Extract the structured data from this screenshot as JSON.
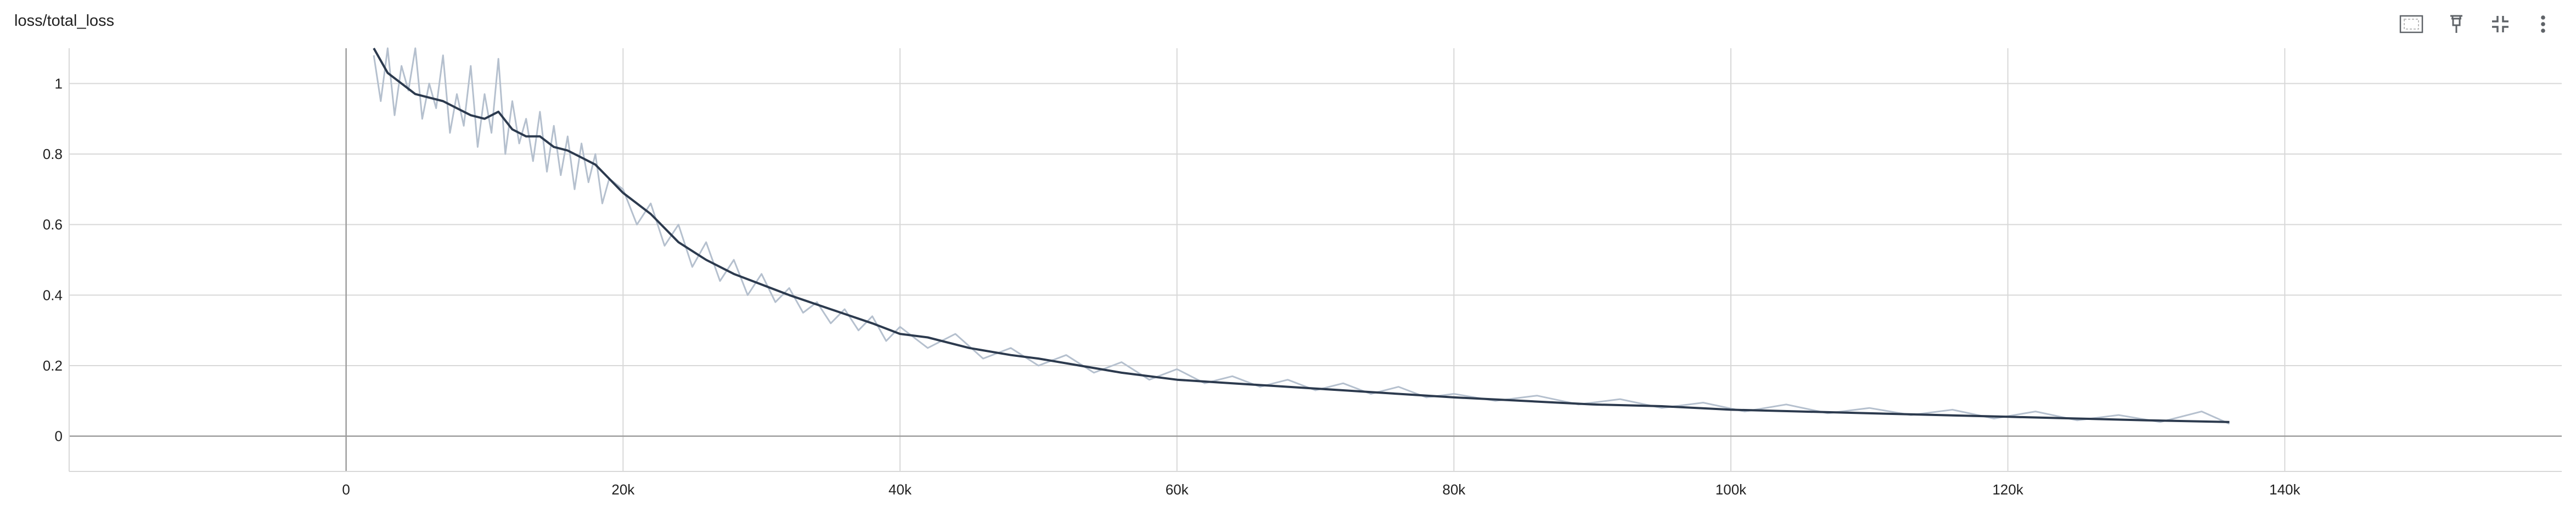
{
  "card": {
    "title": "loss/total_loss",
    "toolbar": {
      "fit_icon": "fit-domain-icon",
      "pin_icon": "pin-icon",
      "collapse_icon": "collapse-icon",
      "menu_icon": "more-vert-icon"
    }
  },
  "colors": {
    "smoothed_line": "#2c3a4e",
    "raw_line": "#b5c0ce",
    "grid": "#d8d8d8",
    "axis": "#9e9e9e"
  },
  "chart_data": {
    "type": "line",
    "title": "loss/total_loss",
    "xlabel": "",
    "ylabel": "",
    "xlim": [
      -20000,
      160000
    ],
    "ylim": [
      -0.1,
      1.1
    ],
    "x_ticks": [
      0,
      20000,
      40000,
      60000,
      80000,
      100000,
      120000,
      140000
    ],
    "x_tick_labels": [
      "0",
      "20k",
      "40k",
      "60k",
      "80k",
      "100k",
      "120k",
      "140k"
    ],
    "y_ticks": [
      0,
      0.2,
      0.4,
      0.6,
      0.8,
      1
    ],
    "y_tick_labels": [
      "0",
      "0.2",
      "0.4",
      "0.6",
      "0.8",
      "1"
    ],
    "grid": true,
    "legend": "none",
    "series": [
      {
        "role": "smoothed",
        "x": [
          2000,
          3000,
          4000,
          5000,
          6000,
          7000,
          8000,
          9000,
          10000,
          11000,
          12000,
          13000,
          14000,
          15000,
          16000,
          17000,
          18000,
          19000,
          20000,
          22000,
          24000,
          26000,
          28000,
          30000,
          32000,
          35000,
          38000,
          40000,
          42000,
          45000,
          48000,
          50000,
          53000,
          56000,
          60000,
          64000,
          68000,
          72000,
          76000,
          80000,
          85000,
          90000,
          95000,
          100000,
          105000,
          110000,
          115000,
          120000,
          125000,
          130000,
          136000
        ],
        "y": [
          1.1,
          1.03,
          1.0,
          0.97,
          0.96,
          0.95,
          0.93,
          0.91,
          0.9,
          0.92,
          0.87,
          0.85,
          0.85,
          0.82,
          0.81,
          0.79,
          0.77,
          0.73,
          0.69,
          0.63,
          0.55,
          0.5,
          0.46,
          0.43,
          0.4,
          0.36,
          0.32,
          0.29,
          0.28,
          0.25,
          0.23,
          0.22,
          0.2,
          0.18,
          0.16,
          0.15,
          0.14,
          0.13,
          0.12,
          0.11,
          0.1,
          0.09,
          0.085,
          0.075,
          0.07,
          0.065,
          0.06,
          0.055,
          0.05,
          0.045,
          0.04
        ]
      },
      {
        "role": "raw",
        "x": [
          2000,
          2500,
          3000,
          3500,
          4000,
          4500,
          5000,
          5500,
          6000,
          6500,
          7000,
          7500,
          8000,
          8500,
          9000,
          9500,
          10000,
          10500,
          11000,
          11500,
          12000,
          12500,
          13000,
          13500,
          14000,
          14500,
          15000,
          15500,
          16000,
          16500,
          17000,
          17500,
          18000,
          18500,
          19000,
          20000,
          21000,
          22000,
          23000,
          24000,
          25000,
          26000,
          27000,
          28000,
          29000,
          30000,
          31000,
          32000,
          33000,
          34000,
          35000,
          36000,
          37000,
          38000,
          39000,
          40000,
          42000,
          44000,
          46000,
          48000,
          50000,
          52000,
          54000,
          56000,
          58000,
          60000,
          62000,
          64000,
          66000,
          68000,
          70000,
          72000,
          74000,
          76000,
          78000,
          80000,
          83000,
          86000,
          89000,
          92000,
          95000,
          98000,
          101000,
          104000,
          107000,
          110000,
          113000,
          116000,
          119000,
          122000,
          125000,
          128000,
          131000,
          134000,
          136000
        ],
        "y": [
          1.08,
          0.95,
          1.1,
          0.91,
          1.05,
          0.98,
          1.1,
          0.9,
          1.0,
          0.93,
          1.08,
          0.86,
          0.97,
          0.88,
          1.05,
          0.82,
          0.97,
          0.86,
          1.07,
          0.8,
          0.95,
          0.83,
          0.9,
          0.78,
          0.92,
          0.75,
          0.88,
          0.74,
          0.85,
          0.7,
          0.83,
          0.72,
          0.8,
          0.66,
          0.73,
          0.7,
          0.6,
          0.66,
          0.54,
          0.6,
          0.48,
          0.55,
          0.44,
          0.5,
          0.4,
          0.46,
          0.38,
          0.42,
          0.35,
          0.38,
          0.32,
          0.36,
          0.3,
          0.34,
          0.27,
          0.31,
          0.25,
          0.29,
          0.22,
          0.25,
          0.2,
          0.23,
          0.18,
          0.21,
          0.16,
          0.19,
          0.15,
          0.17,
          0.14,
          0.16,
          0.13,
          0.15,
          0.12,
          0.14,
          0.11,
          0.12,
          0.1,
          0.115,
          0.09,
          0.105,
          0.08,
          0.095,
          0.07,
          0.09,
          0.065,
          0.08,
          0.06,
          0.075,
          0.05,
          0.07,
          0.045,
          0.06,
          0.04,
          0.07,
          0.035
        ]
      }
    ]
  }
}
